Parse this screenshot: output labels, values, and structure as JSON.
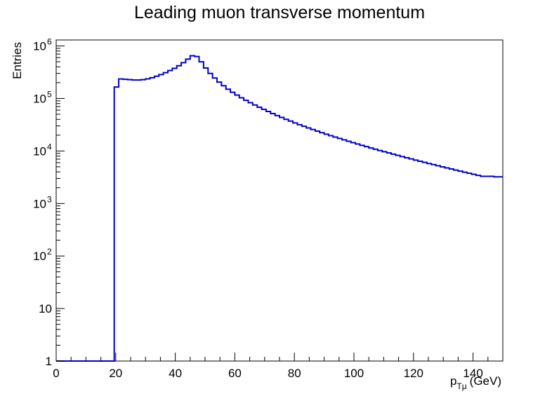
{
  "chart_data": {
    "type": "histogram",
    "title": "Leading muon transverse momentum",
    "xlabel": {
      "main": "p",
      "sub": "Tμ",
      "unit": "(GeV)"
    },
    "ylabel": "Entries",
    "xlim": [
      0,
      150
    ],
    "ylim": [
      1,
      1300000
    ],
    "yscale": "log",
    "bin_width": 1.5,
    "x_ticks": [
      "0",
      "20",
      "40",
      "60",
      "80",
      "100",
      "120",
      "140"
    ],
    "y_ticks": [
      {
        "base": "1",
        "exp": ""
      },
      {
        "base": "10",
        "exp": ""
      },
      {
        "base": "10",
        "exp": "2"
      },
      {
        "base": "10",
        "exp": "3"
      },
      {
        "base": "10",
        "exp": "4"
      },
      {
        "base": "10",
        "exp": "5"
      },
      {
        "base": "10",
        "exp": "6"
      }
    ],
    "color": "#0000cc",
    "x": [
      19.5,
      21,
      22.5,
      24,
      25.5,
      27,
      28.5,
      30,
      31.5,
      33,
      34.5,
      36,
      37.5,
      39,
      40.5,
      42,
      43.5,
      45,
      46.5,
      48,
      49.5,
      51,
      52.5,
      54,
      55.5,
      57,
      58.5,
      60,
      61.5,
      63,
      64.5,
      66,
      67.5,
      69,
      70.5,
      72,
      73.5,
      75,
      76.5,
      78,
      79.5,
      81,
      82.5,
      84,
      85.5,
      87,
      88.5,
      90,
      91.5,
      93,
      94.5,
      96,
      97.5,
      99,
      100.5,
      102,
      103.5,
      105,
      106.5,
      108,
      109.5,
      111,
      112.5,
      114,
      115.5,
      117,
      118.5,
      120,
      121.5,
      123,
      124.5,
      126,
      127.5,
      129,
      130.5,
      132,
      133.5,
      135,
      136.5,
      138,
      139.5,
      141,
      142.5,
      144,
      145.5,
      147,
      148.5
    ],
    "values": [
      165000,
      235000,
      232000,
      228000,
      225000,
      225000,
      228000,
      236000,
      248000,
      265000,
      285000,
      310000,
      340000,
      375000,
      420000,
      480000,
      560000,
      650000,
      630000,
      500000,
      380000,
      300000,
      245000,
      205000,
      175000,
      150000,
      131000,
      116000,
      103000,
      92000,
      83000,
      75000,
      68000,
      62000,
      56500,
      51500,
      47200,
      43500,
      40000,
      37000,
      34200,
      31700,
      29500,
      27500,
      25600,
      23900,
      22300,
      20900,
      19600,
      18400,
      17300,
      16300,
      15300,
      14400,
      13600,
      12800,
      12100,
      11400,
      10800,
      10200,
      9700,
      9200,
      8700,
      8250,
      7830,
      7430,
      7060,
      6710,
      6380,
      6070,
      5780,
      5500,
      5240,
      4990,
      4760,
      4540,
      4330,
      4130,
      3940,
      3770,
      3600,
      3440,
      3290,
      3290,
      3290,
      3220,
      3220
    ],
    "underflow_value": 1
  }
}
